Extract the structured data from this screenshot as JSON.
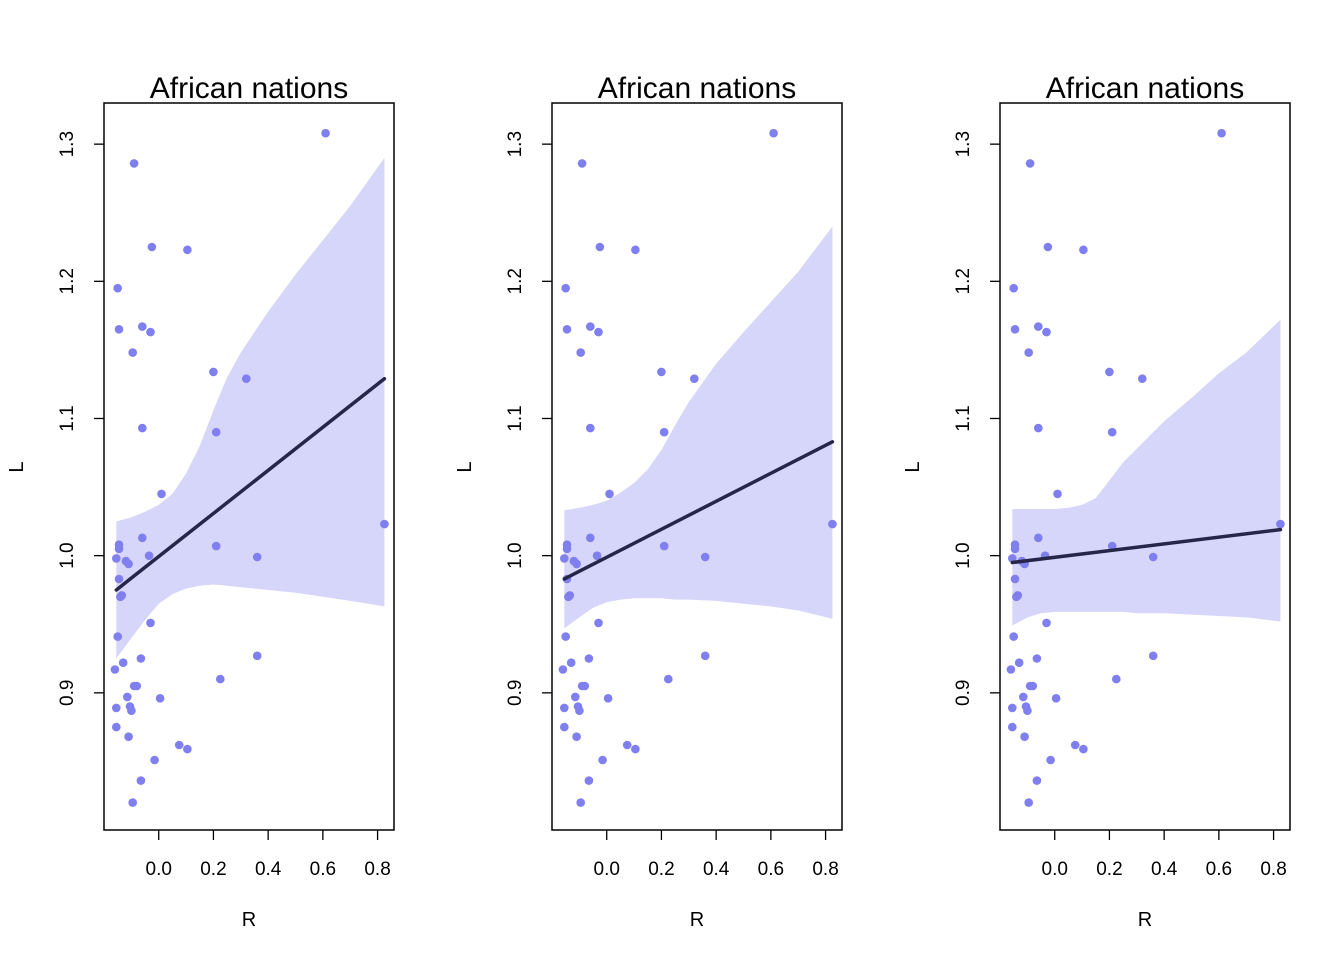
{
  "chart_data": [
    {
      "type": "scatter",
      "title": "African nations",
      "xlabel": "R",
      "ylabel": "L",
      "xlim": [
        -0.2,
        0.86
      ],
      "ylim": [
        0.8,
        1.33
      ],
      "xticks": [
        "0.0",
        "0.2",
        "0.4",
        "0.6",
        "0.8"
      ],
      "yticks": [
        "0.9",
        "1.0",
        "1.1",
        "1.2",
        "1.3"
      ],
      "grid": false,
      "colors": {
        "points": "#7f7fef",
        "band": "#d6d6fb",
        "line": "#262648"
      },
      "x": [
        0.61,
        -0.09,
        -0.025,
        0.105,
        -0.15,
        -0.145,
        -0.06,
        -0.03,
        -0.095,
        0.2,
        0.32,
        -0.06,
        0.21,
        0.01,
        -0.145,
        0.825,
        -0.06,
        -0.145,
        0.21,
        -0.035,
        -0.155,
        -0.12,
        0.36,
        -0.11,
        -0.145,
        -0.135,
        -0.14,
        -0.03,
        -0.15,
        -0.065,
        -0.13,
        -0.09,
        -0.16,
        0.36,
        -0.115,
        0.005,
        -0.08,
        0.225,
        -0.155,
        -0.105,
        -0.1,
        -0.155,
        -0.11,
        0.075,
        0.105,
        -0.015,
        -0.065,
        -0.095
      ],
      "y": [
        1.308,
        1.286,
        1.225,
        1.223,
        1.195,
        1.165,
        1.167,
        1.163,
        1.148,
        1.134,
        1.129,
        1.093,
        1.09,
        1.045,
        1.008,
        1.023,
        1.013,
        1.005,
        1.007,
        1.0,
        0.998,
        0.996,
        0.999,
        0.994,
        0.983,
        0.971,
        0.97,
        0.951,
        0.941,
        0.925,
        0.922,
        0.905,
        0.917,
        0.927,
        0.897,
        0.896,
        0.905,
        0.91,
        0.889,
        0.89,
        0.887,
        0.875,
        0.868,
        0.862,
        0.859,
        0.851,
        0.836,
        0.82
      ],
      "fit_line": {
        "x0": -0.155,
        "y0": 0.975,
        "x1": 0.825,
        "y1": 1.129
      },
      "band": {
        "x": [
          -0.155,
          -0.1,
          -0.05,
          0.0,
          0.05,
          0.1,
          0.15,
          0.2,
          0.25,
          0.3,
          0.4,
          0.5,
          0.6,
          0.7,
          0.825
        ],
        "upper": [
          1.025,
          1.028,
          1.032,
          1.037,
          1.045,
          1.06,
          1.08,
          1.106,
          1.13,
          1.148,
          1.178,
          1.205,
          1.23,
          1.255,
          1.29
        ],
        "lower": [
          0.925,
          0.94,
          0.953,
          0.965,
          0.972,
          0.976,
          0.978,
          0.979,
          0.978,
          0.977,
          0.975,
          0.973,
          0.97,
          0.967,
          0.963
        ]
      }
    },
    {
      "type": "scatter",
      "title": "African nations",
      "xlabel": "R",
      "ylabel": "L",
      "xlim": [
        -0.2,
        0.86
      ],
      "ylim": [
        0.8,
        1.33
      ],
      "xticks": [
        "0.0",
        "0.2",
        "0.4",
        "0.6",
        "0.8"
      ],
      "yticks": [
        "0.9",
        "1.0",
        "1.1",
        "1.2",
        "1.3"
      ],
      "grid": false,
      "colors": {
        "points": "#7f7fef",
        "band": "#d6d6fb",
        "line": "#262648"
      },
      "x": [
        0.61,
        -0.09,
        -0.025,
        0.105,
        -0.15,
        -0.145,
        -0.06,
        -0.03,
        -0.095,
        0.2,
        0.32,
        -0.06,
        0.21,
        0.01,
        -0.145,
        0.825,
        -0.06,
        -0.145,
        0.21,
        -0.035,
        -0.155,
        -0.12,
        0.36,
        -0.11,
        -0.145,
        -0.135,
        -0.14,
        -0.03,
        -0.15,
        -0.065,
        -0.13,
        -0.09,
        -0.16,
        0.36,
        -0.115,
        0.005,
        -0.08,
        0.225,
        -0.155,
        -0.105,
        -0.1,
        -0.155,
        -0.11,
        0.075,
        0.105,
        -0.015,
        -0.065,
        -0.095
      ],
      "y": [
        1.308,
        1.286,
        1.225,
        1.223,
        1.195,
        1.165,
        1.167,
        1.163,
        1.148,
        1.134,
        1.129,
        1.093,
        1.09,
        1.045,
        1.008,
        1.023,
        1.013,
        1.005,
        1.007,
        1.0,
        0.998,
        0.996,
        0.999,
        0.994,
        0.983,
        0.971,
        0.97,
        0.951,
        0.941,
        0.925,
        0.922,
        0.905,
        0.917,
        0.927,
        0.897,
        0.896,
        0.905,
        0.91,
        0.889,
        0.89,
        0.887,
        0.875,
        0.868,
        0.862,
        0.859,
        0.851,
        0.836,
        0.82
      ],
      "fit_line": {
        "x0": -0.155,
        "y0": 0.983,
        "x1": 0.825,
        "y1": 1.083
      },
      "band": {
        "x": [
          -0.155,
          -0.1,
          -0.05,
          0.0,
          0.05,
          0.1,
          0.15,
          0.2,
          0.25,
          0.3,
          0.4,
          0.5,
          0.6,
          0.7,
          0.825
        ],
        "upper": [
          1.033,
          1.035,
          1.037,
          1.04,
          1.046,
          1.053,
          1.063,
          1.077,
          1.095,
          1.112,
          1.14,
          1.163,
          1.185,
          1.207,
          1.24
        ],
        "lower": [
          0.947,
          0.955,
          0.962,
          0.966,
          0.968,
          0.969,
          0.969,
          0.969,
          0.968,
          0.968,
          0.967,
          0.965,
          0.963,
          0.96,
          0.954
        ]
      }
    },
    {
      "type": "scatter",
      "title": "African nations",
      "xlabel": "R",
      "ylabel": "L",
      "xlim": [
        -0.2,
        0.86
      ],
      "ylim": [
        0.8,
        1.33
      ],
      "xticks": [
        "0.0",
        "0.2",
        "0.4",
        "0.6",
        "0.8"
      ],
      "yticks": [
        "0.9",
        "1.0",
        "1.1",
        "1.2",
        "1.3"
      ],
      "grid": false,
      "colors": {
        "points": "#7f7fef",
        "band": "#d6d6fb",
        "line": "#262648"
      },
      "x": [
        0.61,
        -0.09,
        -0.025,
        0.105,
        -0.15,
        -0.145,
        -0.06,
        -0.03,
        -0.095,
        0.2,
        0.32,
        -0.06,
        0.21,
        0.01,
        -0.145,
        0.825,
        -0.06,
        -0.145,
        0.21,
        -0.035,
        -0.155,
        -0.12,
        0.36,
        -0.11,
        -0.145,
        -0.135,
        -0.14,
        -0.03,
        -0.15,
        -0.065,
        -0.13,
        -0.09,
        -0.16,
        0.36,
        -0.115,
        0.005,
        -0.08,
        0.225,
        -0.155,
        -0.105,
        -0.1,
        -0.155,
        -0.11,
        0.075,
        0.105,
        -0.015,
        -0.065,
        -0.095
      ],
      "y": [
        1.308,
        1.286,
        1.225,
        1.223,
        1.195,
        1.165,
        1.167,
        1.163,
        1.148,
        1.134,
        1.129,
        1.093,
        1.09,
        1.045,
        1.008,
        1.023,
        1.013,
        1.005,
        1.007,
        1.0,
        0.998,
        0.996,
        0.999,
        0.994,
        0.983,
        0.971,
        0.97,
        0.951,
        0.941,
        0.925,
        0.922,
        0.905,
        0.917,
        0.927,
        0.897,
        0.896,
        0.905,
        0.91,
        0.889,
        0.89,
        0.887,
        0.875,
        0.868,
        0.862,
        0.859,
        0.851,
        0.836,
        0.82
      ],
      "fit_line": {
        "x0": -0.155,
        "y0": 0.995,
        "x1": 0.825,
        "y1": 1.019
      },
      "band": {
        "x": [
          -0.155,
          -0.1,
          -0.05,
          0.0,
          0.05,
          0.1,
          0.15,
          0.2,
          0.25,
          0.3,
          0.4,
          0.5,
          0.6,
          0.7,
          0.825
        ],
        "upper": [
          1.034,
          1.034,
          1.034,
          1.034,
          1.035,
          1.037,
          1.042,
          1.055,
          1.068,
          1.078,
          1.098,
          1.115,
          1.133,
          1.148,
          1.172
        ],
        "lower": [
          0.949,
          0.955,
          0.958,
          0.959,
          0.959,
          0.959,
          0.959,
          0.959,
          0.959,
          0.958,
          0.958,
          0.957,
          0.956,
          0.955,
          0.952
        ]
      }
    }
  ]
}
